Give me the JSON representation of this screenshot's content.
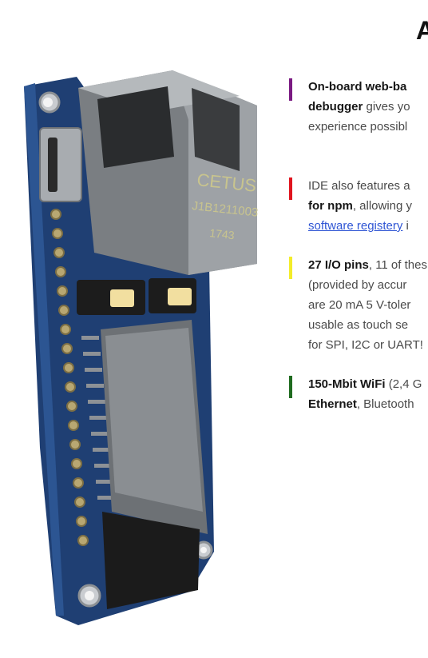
{
  "heading": "A",
  "colors": {
    "purple": "#7a1a82",
    "red": "#e0141e",
    "yellow": "#f3ec2a",
    "green": "#1f6b1f",
    "link": "#2f55d4"
  },
  "board": {
    "module_brand": "CETUS",
    "module_code": "J1B1211003",
    "module_date": "1743"
  },
  "features": [
    {
      "lines": [
        [
          "On-board web-ba",
          ""
        ],
        [
          "debugger",
          " gives yo"
        ],
        [
          "",
          "experience possibl"
        ]
      ]
    },
    {
      "lines": [
        [
          "",
          "IDE also features a"
        ],
        [
          "for npm",
          ", allowing y"
        ]
      ],
      "link": "software registery",
      "link_tail": " i"
    },
    {
      "lines": [
        [
          "27 I/O pins",
          ", 11 of thes"
        ],
        [
          "",
          "(provided by accur"
        ],
        [
          "",
          "are 20 mA 5 V-toler"
        ],
        [
          "",
          "usable as touch se"
        ],
        [
          "",
          "for SPI, I2C or UART!"
        ]
      ]
    },
    {
      "lines": [
        [
          "150-Mbit WiFi",
          " (2,4 G"
        ],
        [
          "Ethernet",
          ", Bluetooth"
        ]
      ]
    }
  ]
}
